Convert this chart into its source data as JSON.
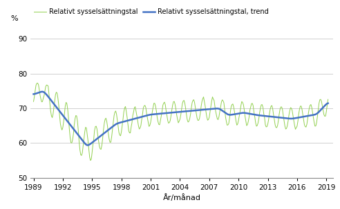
{
  "title": "",
  "ylabel": "%",
  "xlabel": "År/månad",
  "legend_labels": [
    "Relativt sysselsättningstal",
    "Relativt sysselsättningstal, trend"
  ],
  "line_color_raw": "#92d050",
  "line_color_trend": "#4472c4",
  "ylim": [
    50,
    94
  ],
  "yticks": [
    50,
    60,
    70,
    80,
    90
  ],
  "xtick_years": [
    1989,
    1992,
    1995,
    1998,
    2001,
    2004,
    2007,
    2010,
    2013,
    2016,
    2019
  ],
  "bg_color": "#ffffff",
  "grid_color": "#c8c8c8",
  "start_year": 1989,
  "start_month": 1,
  "end_year": 2019,
  "end_month": 3
}
